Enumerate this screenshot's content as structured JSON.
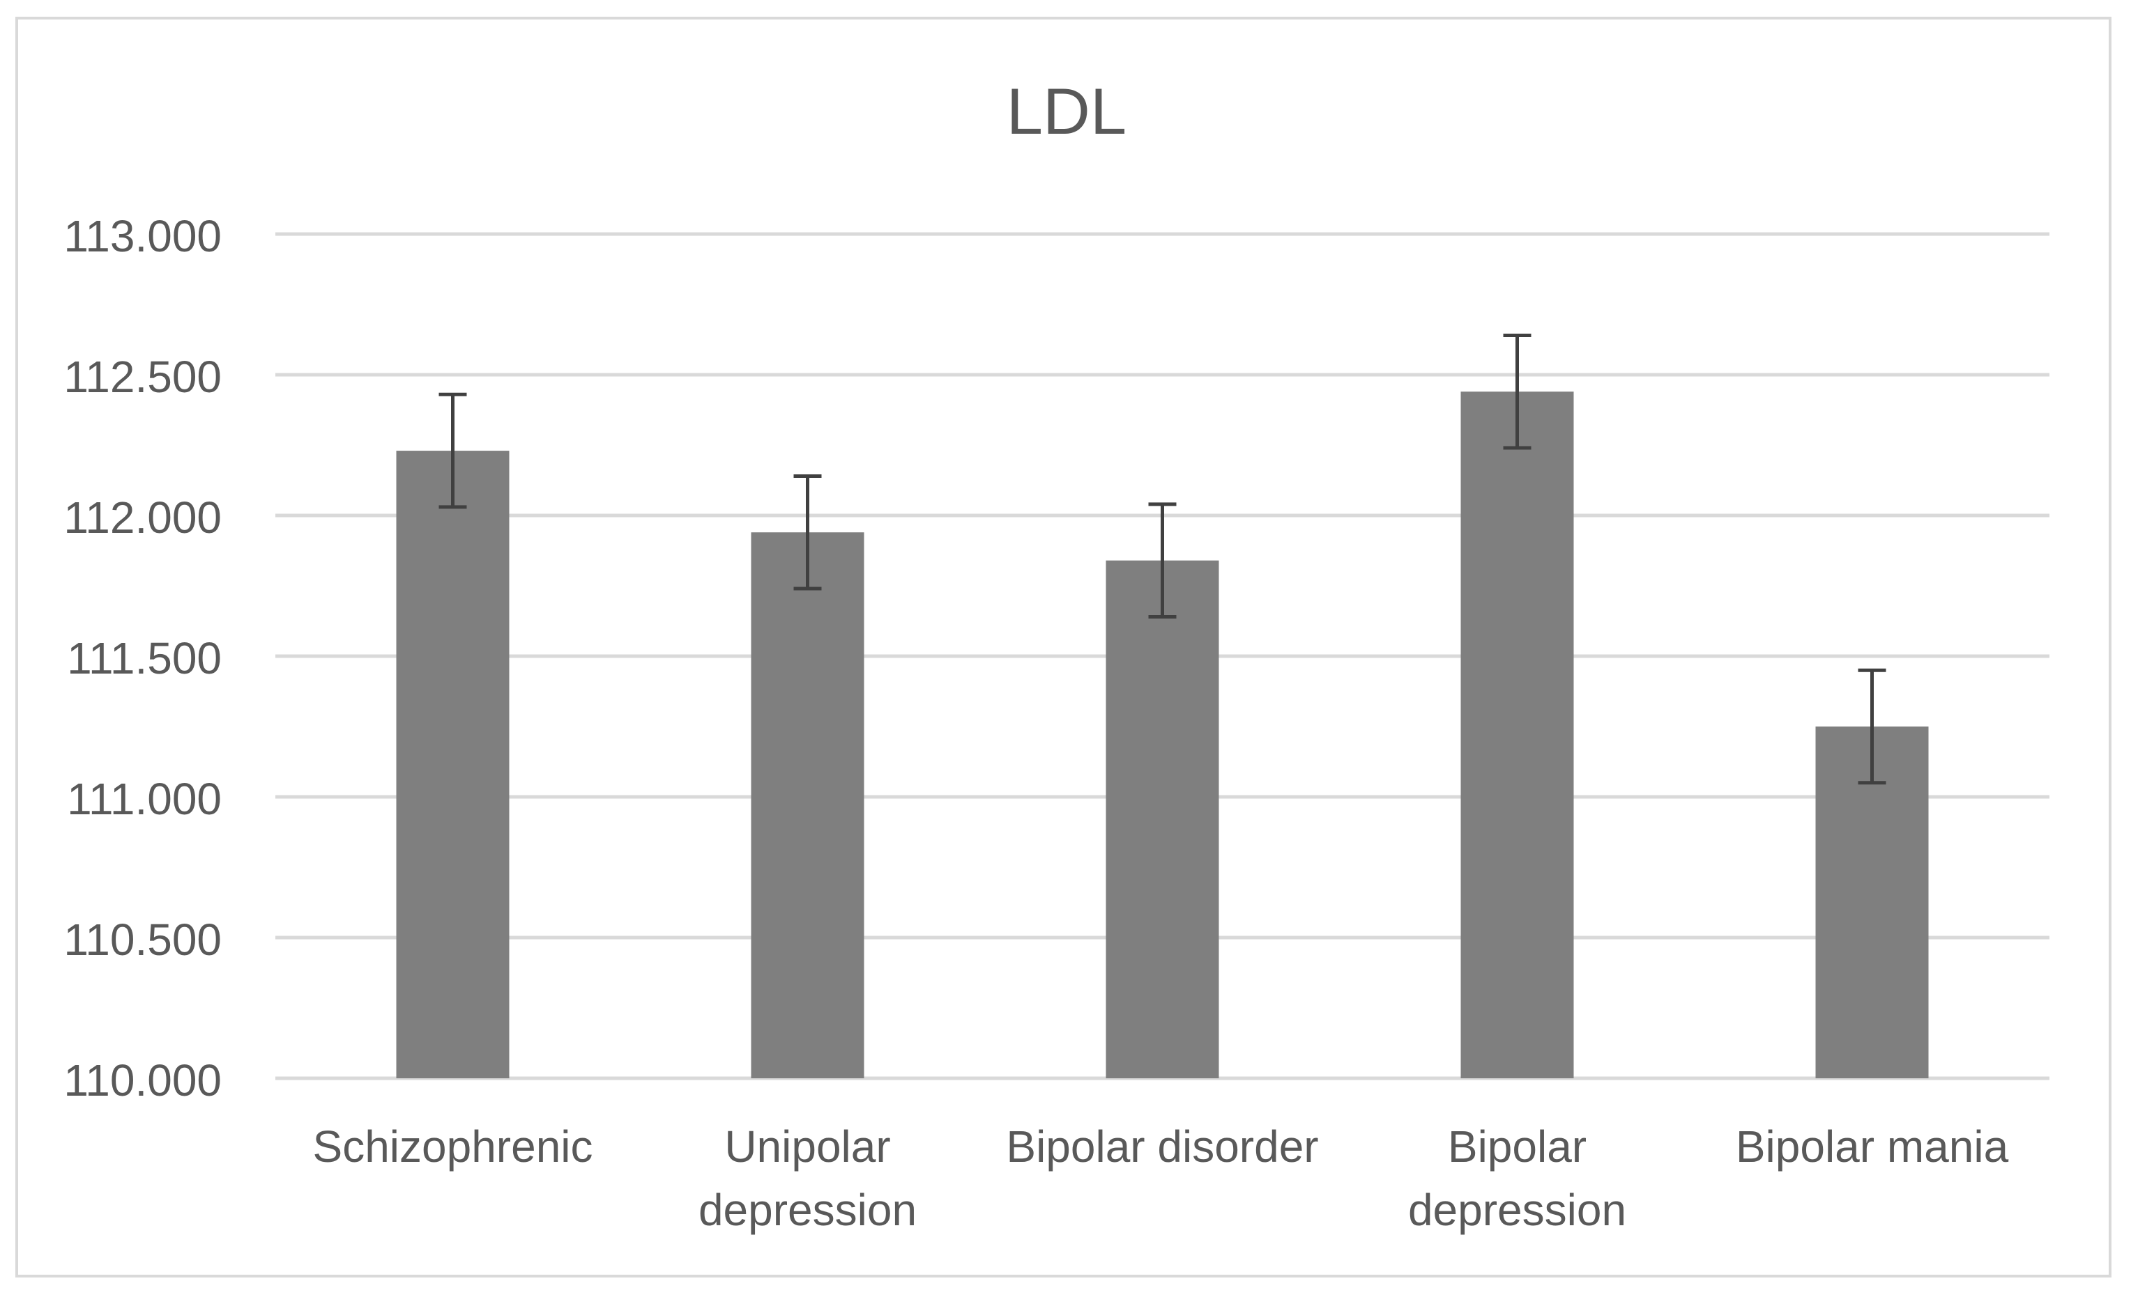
{
  "chart_data": {
    "type": "bar",
    "title": "LDL",
    "xlabel": "",
    "ylabel": "",
    "categories": [
      [
        "Schizophrenic"
      ],
      [
        "Unipolar",
        "depression"
      ],
      [
        "Bipolar disorder"
      ],
      [
        "Bipolar",
        "depression"
      ],
      [
        "Bipolar mania"
      ]
    ],
    "values": [
      112.23,
      111.94,
      111.84,
      112.44,
      111.25
    ],
    "error": [
      0.2,
      0.2,
      0.2,
      0.2,
      0.2
    ],
    "ylim": [
      110.0,
      113.0
    ],
    "yticks": [
      110.0,
      110.5,
      111.0,
      111.5,
      112.0,
      112.5,
      113.0
    ],
    "ytick_labels": [
      "110.000",
      "110.500",
      "111.000",
      "111.500",
      "112.000",
      "112.500",
      "113.000"
    ],
    "grid": true,
    "legend": "none",
    "colors": {
      "bar": "#7f7f7f",
      "errorbar": "#404040",
      "grid": "#d9d9d9",
      "text": "#595959",
      "border": "#d9d9d9"
    }
  }
}
